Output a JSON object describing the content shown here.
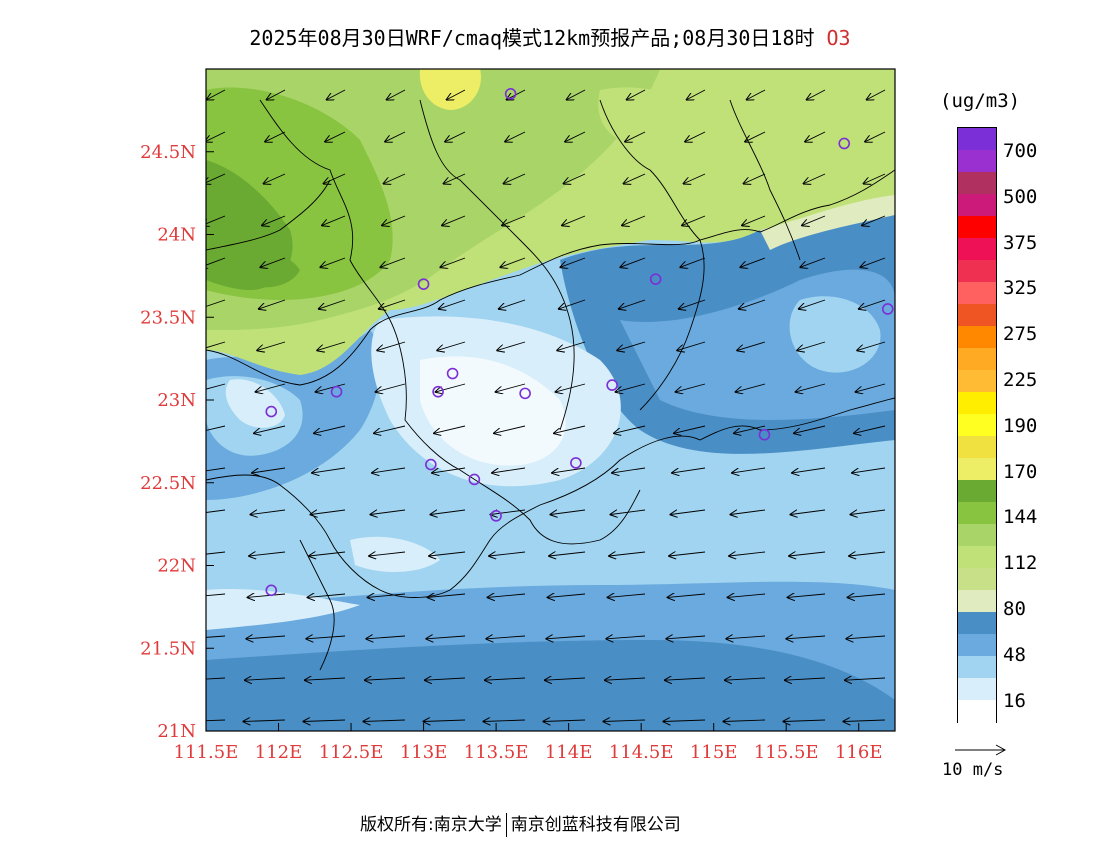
{
  "title": {
    "text": "2025年08月30日WRF/cmaq模式12km预报产品;08月30日18时",
    "species": "O3"
  },
  "axes": {
    "x_ticks": [
      "111.5E",
      "112E",
      "112.5E",
      "113E",
      "113.5E",
      "114E",
      "114.5E",
      "115E",
      "115.5E",
      "116E"
    ],
    "y_ticks": [
      "21N",
      "21.5N",
      "22N",
      "22.5N",
      "23N",
      "23.5N",
      "24N",
      "24.5N"
    ],
    "lon_range": [
      111.5,
      116.25
    ],
    "lat_range": [
      21.0,
      25.0
    ],
    "label_color": "#e03a3a"
  },
  "colorbar": {
    "unit": "(ug/m3)",
    "labels": [
      "700",
      "500",
      "375",
      "325",
      "275",
      "225",
      "190",
      "170",
      "144",
      "112",
      "80",
      "48",
      "16"
    ],
    "colors_top_to_bottom": [
      "#7b2fd6",
      "#9b30d0",
      "#b03060",
      "#cc1a7a",
      "#ff0000",
      "#ee1155",
      "#f03050",
      "#ff6060",
      "#ee5522",
      "#ff8800",
      "#ffaa22",
      "#ffbb33",
      "#ffee00",
      "#ffff22",
      "#f0e040",
      "#eeee66",
      "#6aaa33",
      "#88c440",
      "#a8d468",
      "#c0e078",
      "#c8e088",
      "#e0ecc0",
      "#4a8ec6",
      "#6aaade",
      "#a0d4f0",
      "#d8eefa",
      "#ffffff"
    ]
  },
  "wind_reference": {
    "label": "10  m/s"
  },
  "stations": [
    {
      "lon": 113.6,
      "lat": 24.85
    },
    {
      "lon": 115.9,
      "lat": 24.55
    },
    {
      "lon": 113.0,
      "lat": 23.7
    },
    {
      "lon": 114.6,
      "lat": 23.73
    },
    {
      "lon": 116.2,
      "lat": 23.55
    },
    {
      "lon": 112.4,
      "lat": 23.05
    },
    {
      "lon": 111.95,
      "lat": 22.93
    },
    {
      "lon": 113.1,
      "lat": 23.05
    },
    {
      "lon": 113.2,
      "lat": 23.16
    },
    {
      "lon": 113.7,
      "lat": 23.04
    },
    {
      "lon": 114.3,
      "lat": 23.09
    },
    {
      "lon": 113.05,
      "lat": 22.61
    },
    {
      "lon": 113.35,
      "lat": 22.52
    },
    {
      "lon": 113.5,
      "lat": 22.3
    },
    {
      "lon": 114.05,
      "lat": 22.62
    },
    {
      "lon": 115.35,
      "lat": 22.79
    },
    {
      "lon": 111.95,
      "lat": 21.85
    }
  ],
  "footer": {
    "left": "版权所有:南京大学",
    "right": "南京创蓝科技有限公司"
  }
}
